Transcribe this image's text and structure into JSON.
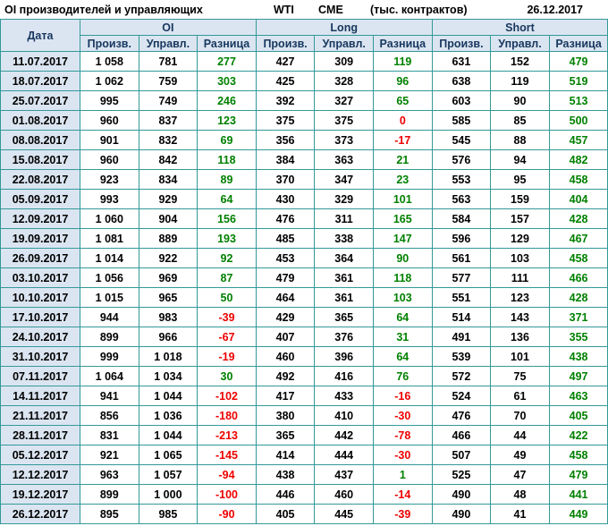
{
  "header_bar": {
    "title": "OI производителей и управляющих",
    "instrument": "WTI",
    "exchange": "CME",
    "units": "(тыс. контрактов)",
    "date": "26.12.2017"
  },
  "chart_data": {
    "type": "table",
    "title": "OI производителей и управляющих",
    "subtitle": "WTI CME (тыс. контрактов) 26.12.2017",
    "date_column_header": "Дата",
    "groups": [
      "OI",
      "Long",
      "Short"
    ],
    "sub_headers": [
      "Произв.",
      "Управл.",
      "Разница"
    ],
    "columns": [
      "Дата",
      "OI Произв.",
      "OI Управл.",
      "OI Разница",
      "Long Произв.",
      "Long Управл.",
      "Long Разница",
      "Short Произв.",
      "Short Управл.",
      "Short Разница"
    ],
    "rows": [
      {
        "date": "11.07.2017",
        "values": [
          "1 058",
          "781",
          "277",
          "427",
          "309",
          "119",
          "631",
          "152",
          "479"
        ]
      },
      {
        "date": "18.07.2017",
        "values": [
          "1 062",
          "759",
          "303",
          "425",
          "328",
          "96",
          "638",
          "119",
          "519"
        ]
      },
      {
        "date": "25.07.2017",
        "values": [
          "995",
          "749",
          "246",
          "392",
          "327",
          "65",
          "603",
          "90",
          "513"
        ]
      },
      {
        "date": "01.08.2017",
        "values": [
          "960",
          "837",
          "123",
          "375",
          "375",
          "0",
          "585",
          "85",
          "500"
        ]
      },
      {
        "date": "08.08.2017",
        "values": [
          "901",
          "832",
          "69",
          "356",
          "373",
          "-17",
          "545",
          "88",
          "457"
        ]
      },
      {
        "date": "15.08.2017",
        "values": [
          "960",
          "842",
          "118",
          "384",
          "363",
          "21",
          "576",
          "94",
          "482"
        ]
      },
      {
        "date": "22.08.2017",
        "values": [
          "923",
          "834",
          "89",
          "370",
          "347",
          "23",
          "553",
          "95",
          "458"
        ]
      },
      {
        "date": "05.09.2017",
        "values": [
          "993",
          "929",
          "64",
          "430",
          "329",
          "101",
          "563",
          "159",
          "404"
        ]
      },
      {
        "date": "12.09.2017",
        "values": [
          "1 060",
          "904",
          "156",
          "476",
          "311",
          "165",
          "584",
          "157",
          "428"
        ]
      },
      {
        "date": "19.09.2017",
        "values": [
          "1 081",
          "889",
          "193",
          "485",
          "338",
          "147",
          "596",
          "129",
          "467"
        ]
      },
      {
        "date": "26.09.2017",
        "values": [
          "1 014",
          "922",
          "92",
          "453",
          "364",
          "90",
          "561",
          "103",
          "458"
        ]
      },
      {
        "date": "03.10.2017",
        "values": [
          "1 056",
          "969",
          "87",
          "479",
          "361",
          "118",
          "577",
          "111",
          "466"
        ]
      },
      {
        "date": "10.10.2017",
        "values": [
          "1 015",
          "965",
          "50",
          "464",
          "361",
          "103",
          "551",
          "123",
          "428"
        ]
      },
      {
        "date": "17.10.2017",
        "values": [
          "944",
          "983",
          "-39",
          "429",
          "365",
          "64",
          "514",
          "143",
          "371"
        ]
      },
      {
        "date": "24.10.2017",
        "values": [
          "899",
          "966",
          "-67",
          "407",
          "376",
          "31",
          "491",
          "136",
          "355"
        ]
      },
      {
        "date": "31.10.2017",
        "values": [
          "999",
          "1 018",
          "-19",
          "460",
          "396",
          "64",
          "539",
          "101",
          "438"
        ]
      },
      {
        "date": "07.11.2017",
        "values": [
          "1 064",
          "1 034",
          "30",
          "492",
          "416",
          "76",
          "572",
          "75",
          "497"
        ]
      },
      {
        "date": "14.11.2017",
        "values": [
          "941",
          "1 044",
          "-102",
          "417",
          "433",
          "-16",
          "524",
          "61",
          "463"
        ]
      },
      {
        "date": "21.11.2017",
        "values": [
          "856",
          "1 036",
          "-180",
          "380",
          "410",
          "-30",
          "476",
          "70",
          "405"
        ]
      },
      {
        "date": "28.11.2017",
        "values": [
          "831",
          "1 044",
          "-213",
          "365",
          "442",
          "-78",
          "466",
          "44",
          "422"
        ]
      },
      {
        "date": "05.12.2017",
        "values": [
          "921",
          "1 065",
          "-145",
          "414",
          "444",
          "-30",
          "507",
          "49",
          "458"
        ]
      },
      {
        "date": "12.12.2017",
        "values": [
          "963",
          "1 057",
          "-94",
          "438",
          "437",
          "1",
          "525",
          "47",
          "479"
        ]
      },
      {
        "date": "19.12.2017",
        "values": [
          "899",
          "1 000",
          "-100",
          "446",
          "460",
          "-14",
          "490",
          "48",
          "441"
        ]
      },
      {
        "date": "26.12.2017",
        "values": [
          "895",
          "985",
          "-90",
          "405",
          "445",
          "-39",
          "490",
          "41",
          "449"
        ]
      }
    ]
  },
  "colors": {
    "pos": "#008000",
    "neg": "#ee0000",
    "headerBg": "#dbe5f1",
    "headerText": "#17375e",
    "border": "#339999"
  }
}
